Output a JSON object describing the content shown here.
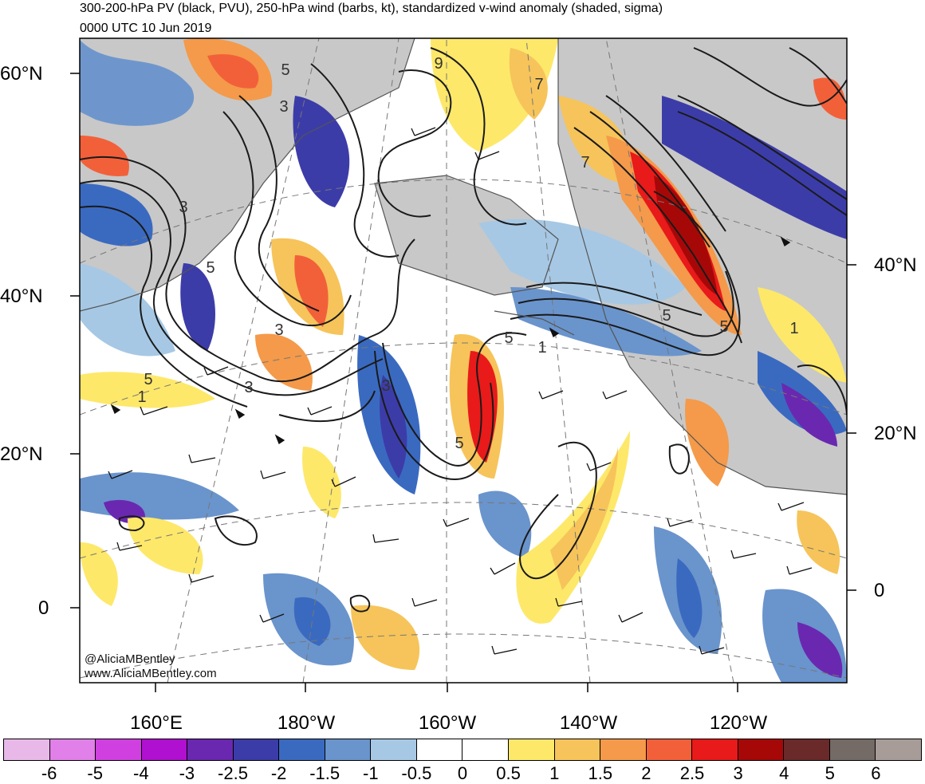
{
  "title_line1": "300-200-hPa PV (black, PVU), 250-hPa wind (barbs, kt), standardized v-wind anomaly (shaded, sigma)",
  "title_line2": "0000 UTC 10 Jun 2019",
  "lat_labels_left": [
    "60°N",
    "40°N",
    "20°N",
    "0"
  ],
  "lat_labels_right": [
    "40°N",
    "20°N",
    "0"
  ],
  "lon_labels": [
    "160°E",
    "180°W",
    "160°W",
    "140°W",
    "120°W"
  ],
  "credit_line1": "@AliciaMBentley",
  "credit_line2": "www.AliciaMBentley.com",
  "pv_contour_labels": [
    "5",
    "3",
    "9",
    "7",
    "3",
    "5",
    "3",
    "1",
    "3",
    "3",
    "5",
    "5",
    "1",
    "7",
    "5",
    "5",
    "1",
    "5"
  ],
  "colorbar": {
    "labels": [
      "-6",
      "-5",
      "-4",
      "-3",
      "-2.5",
      "-2",
      "-1.5",
      "-1",
      "-0.5",
      "0",
      "0.5",
      "1",
      "1.5",
      "2",
      "2.5",
      "3",
      "4",
      "5",
      "6"
    ],
    "colors": [
      "#e8b8e8",
      "#e080e8",
      "#d040e0",
      "#b010d0",
      "#6a28b0",
      "#3c3ca8",
      "#3a6ac0",
      "#6a94cc",
      "#a6c8e4",
      "#ffffff",
      "#ffffff",
      "#fde86a",
      "#f6c45a",
      "#f49a4a",
      "#f2603a",
      "#e81a1a",
      "#a60808",
      "#6a2a2a",
      "#746a66",
      "#a89c98"
    ]
  },
  "palette": {
    "land": "#c8c8c8",
    "ocean": "#ffffff",
    "contour": "#1a1a1a"
  }
}
